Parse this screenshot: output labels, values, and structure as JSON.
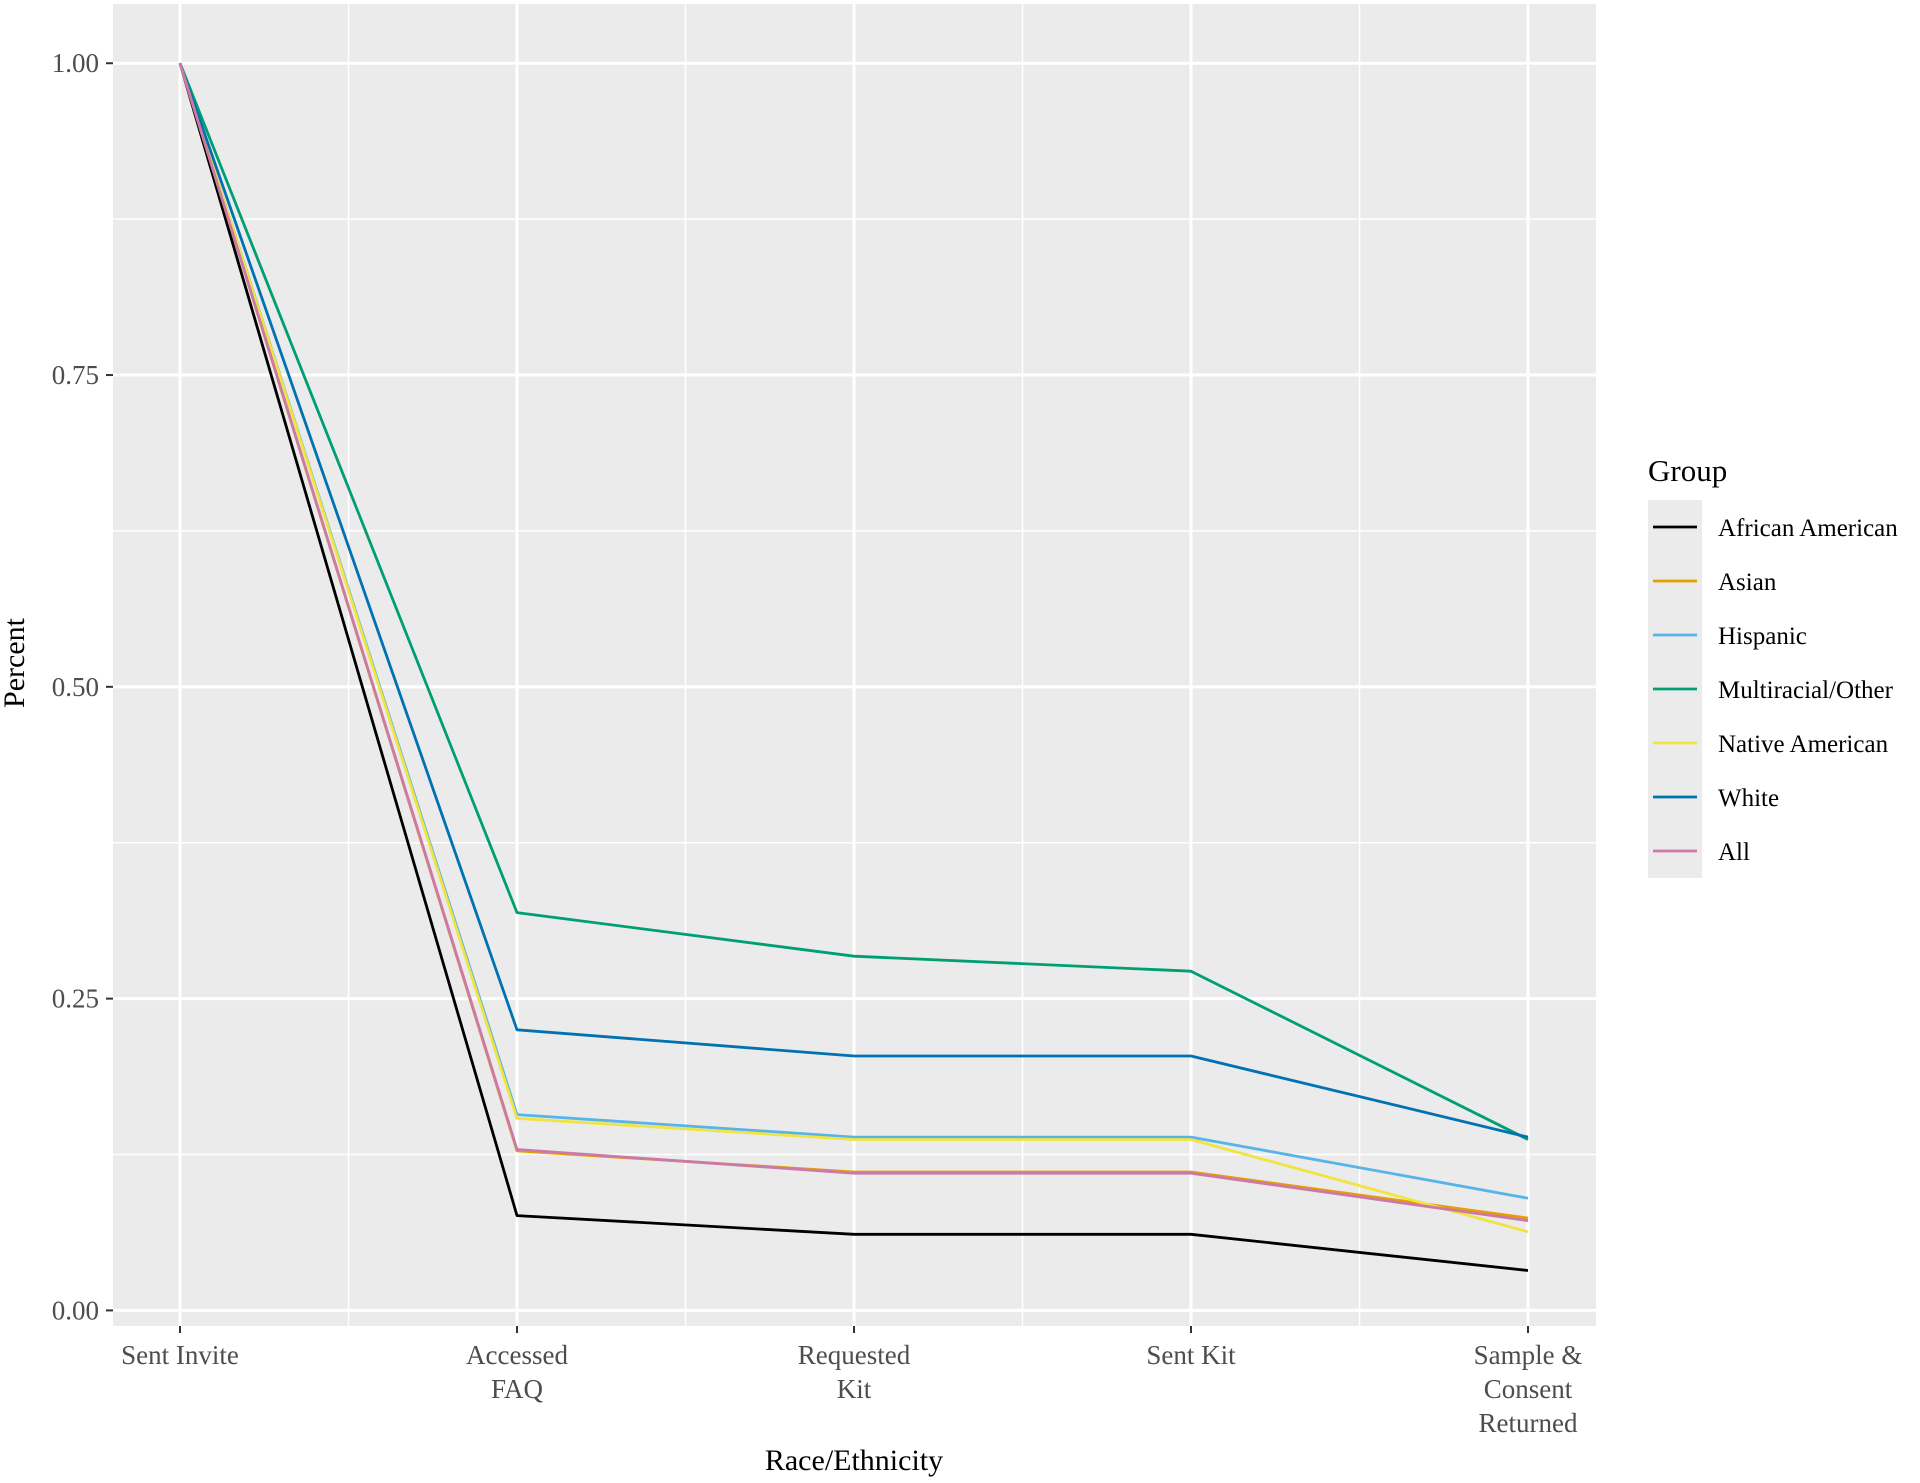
{
  "chart_data": {
    "type": "line",
    "xlabel": "Race/Ethnicity",
    "ylabel": "Percent",
    "categories": [
      [
        "Sent Invite"
      ],
      [
        "Accessed",
        "FAQ"
      ],
      [
        "Requested",
        "Kit"
      ],
      [
        "Sent Kit"
      ],
      [
        "Sample &",
        "Consent",
        "Returned"
      ]
    ],
    "ylim": [
      -0.0125,
      1.0475
    ],
    "yticks": [
      0,
      0.25,
      0.5,
      0.75,
      1
    ],
    "ytick_labels": [
      "0.00",
      "0.25",
      "0.50",
      "0.75",
      "1.00"
    ],
    "grid": true,
    "legend": {
      "title": "Group",
      "position": "right"
    },
    "series": [
      {
        "name": "African American",
        "color": "#000000",
        "values": [
          1.0,
          0.076,
          0.061,
          0.061,
          0.032
        ]
      },
      {
        "name": "Asian",
        "color": "#E69F00",
        "values": [
          1.0,
          0.128,
          0.111,
          0.111,
          0.074
        ]
      },
      {
        "name": "Hispanic",
        "color": "#56B4E9",
        "values": [
          1.0,
          0.157,
          0.139,
          0.139,
          0.09
        ]
      },
      {
        "name": "Multiracial/Other",
        "color": "#009E73",
        "values": [
          1.0,
          0.319,
          0.284,
          0.272,
          0.137
        ]
      },
      {
        "name": "Native American",
        "color": "#F0E442",
        "values": [
          1.0,
          0.154,
          0.137,
          0.137,
          0.063
        ]
      },
      {
        "name": "White",
        "color": "#0072B2",
        "values": [
          1.0,
          0.225,
          0.204,
          0.204,
          0.139
        ]
      },
      {
        "name": "All",
        "color": "#CC79A7",
        "values": [
          1.0,
          0.129,
          0.11,
          0.11,
          0.072
        ]
      }
    ]
  }
}
